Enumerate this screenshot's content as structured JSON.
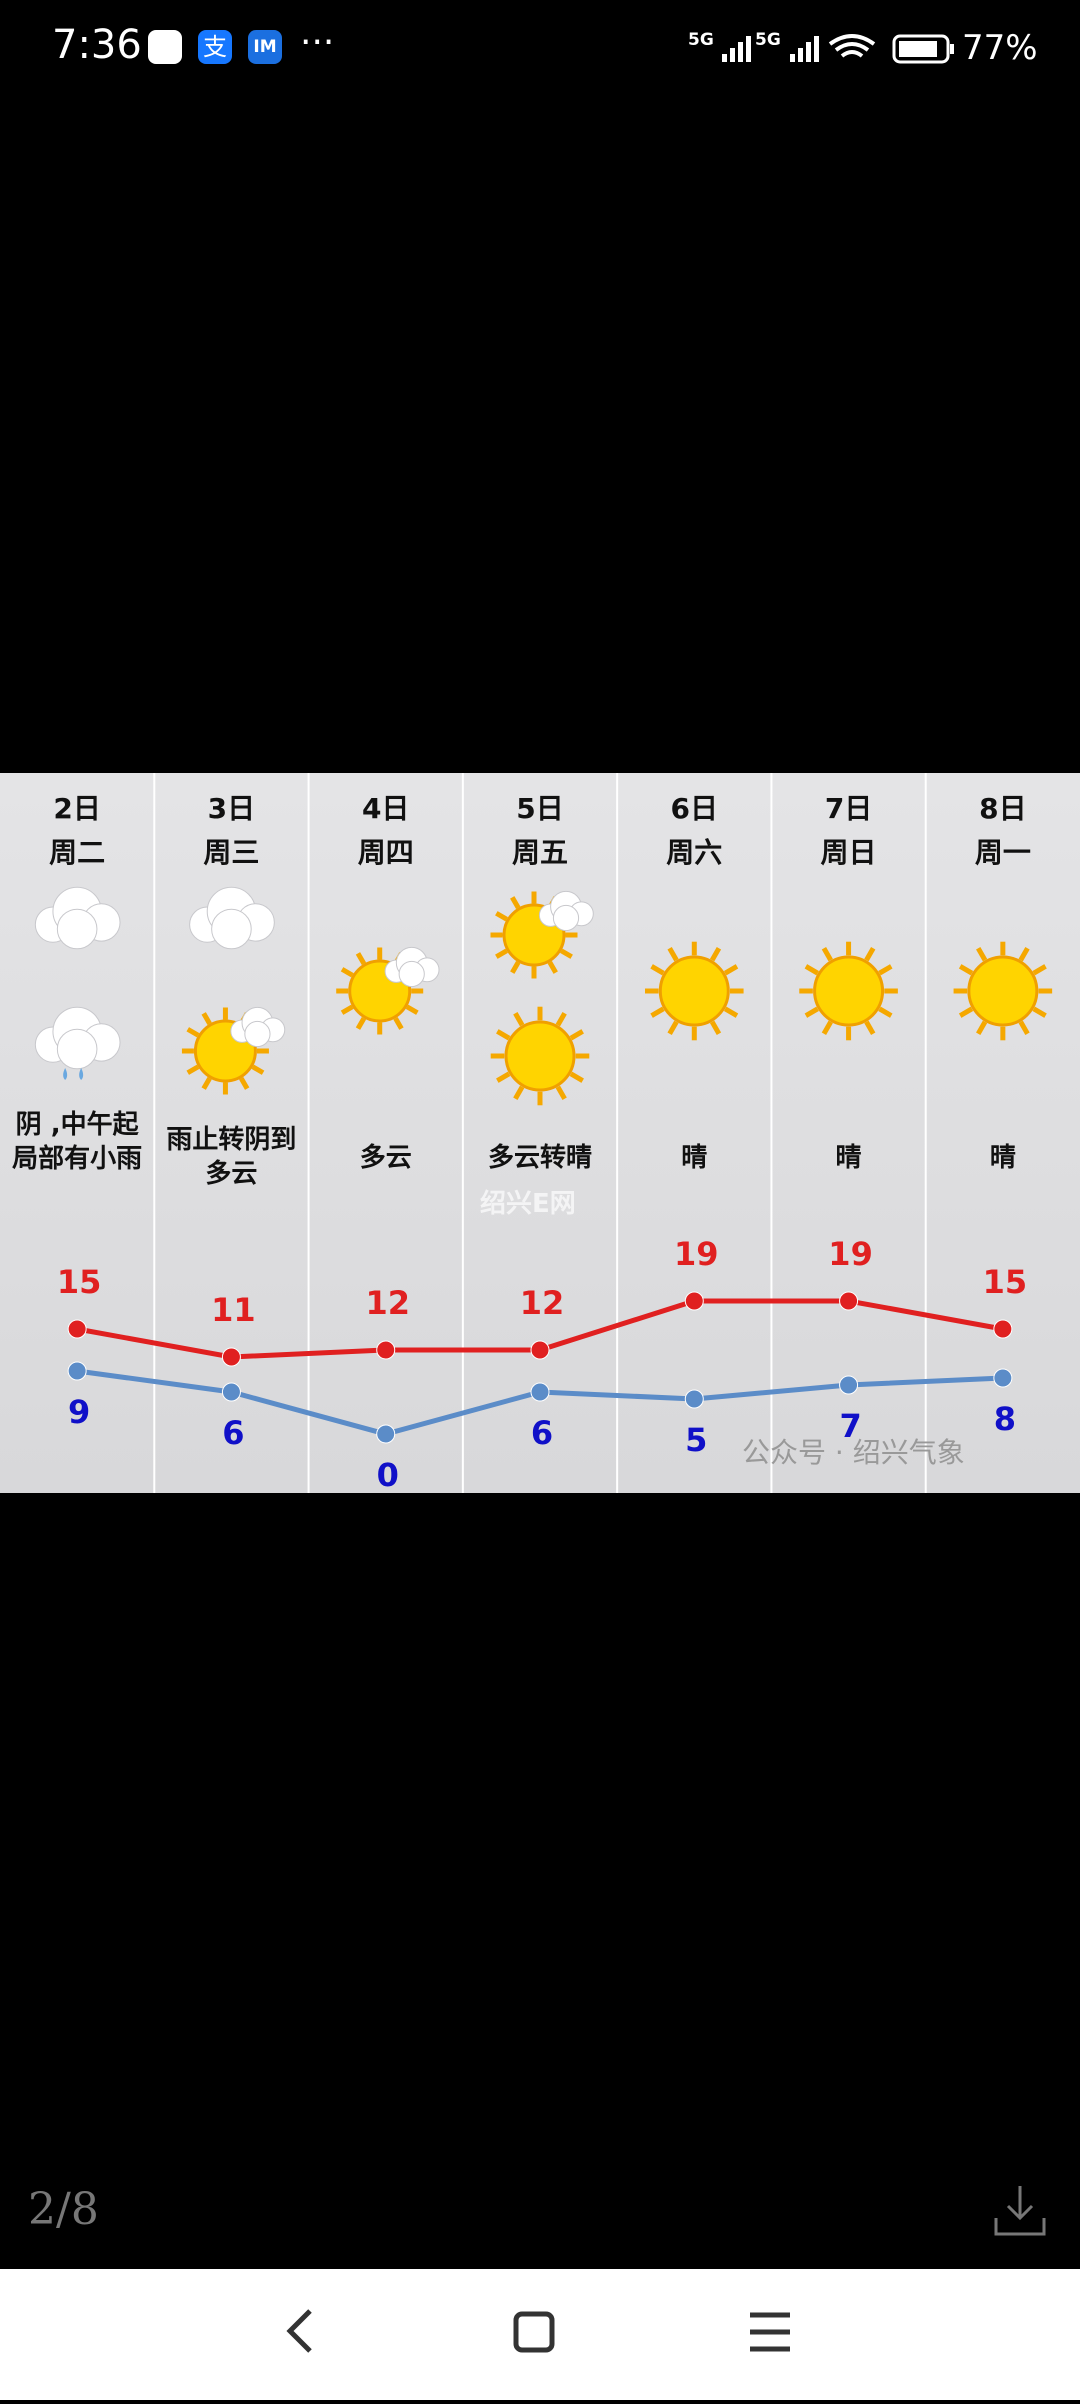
{
  "status_bar": {
    "time": "7:36",
    "apps": [
      "支",
      "IM"
    ],
    "network": [
      "5G",
      "5G"
    ],
    "battery": "77%"
  },
  "forecast": {
    "days": [
      {
        "date": "2日",
        "weekday": "周二",
        "desc": "阴 ,中午起局部有小雨",
        "high": 15,
        "low": 9
      },
      {
        "date": "3日",
        "weekday": "周三",
        "desc": "雨止转阴到多云",
        "high": 11,
        "low": 6
      },
      {
        "date": "4日",
        "weekday": "周四",
        "desc": "多云",
        "high": 12,
        "low": 0
      },
      {
        "date": "5日",
        "weekday": "周五",
        "desc": "多云转晴",
        "high": 12,
        "low": 6
      },
      {
        "date": "6日",
        "weekday": "周六",
        "desc": "晴",
        "high": 19,
        "low": 5
      },
      {
        "date": "7日",
        "weekday": "周日",
        "desc": "晴",
        "high": 19,
        "low": 7
      },
      {
        "date": "8日",
        "weekday": "周一",
        "desc": "晴",
        "high": 15,
        "low": 8
      }
    ],
    "high_color": "#e02020",
    "low_color": "#5b8cc8",
    "watermarks": [
      "绍兴E网",
      "公众号 · 绍兴气象"
    ]
  },
  "viewer": {
    "page_indicator": "2/8"
  }
}
